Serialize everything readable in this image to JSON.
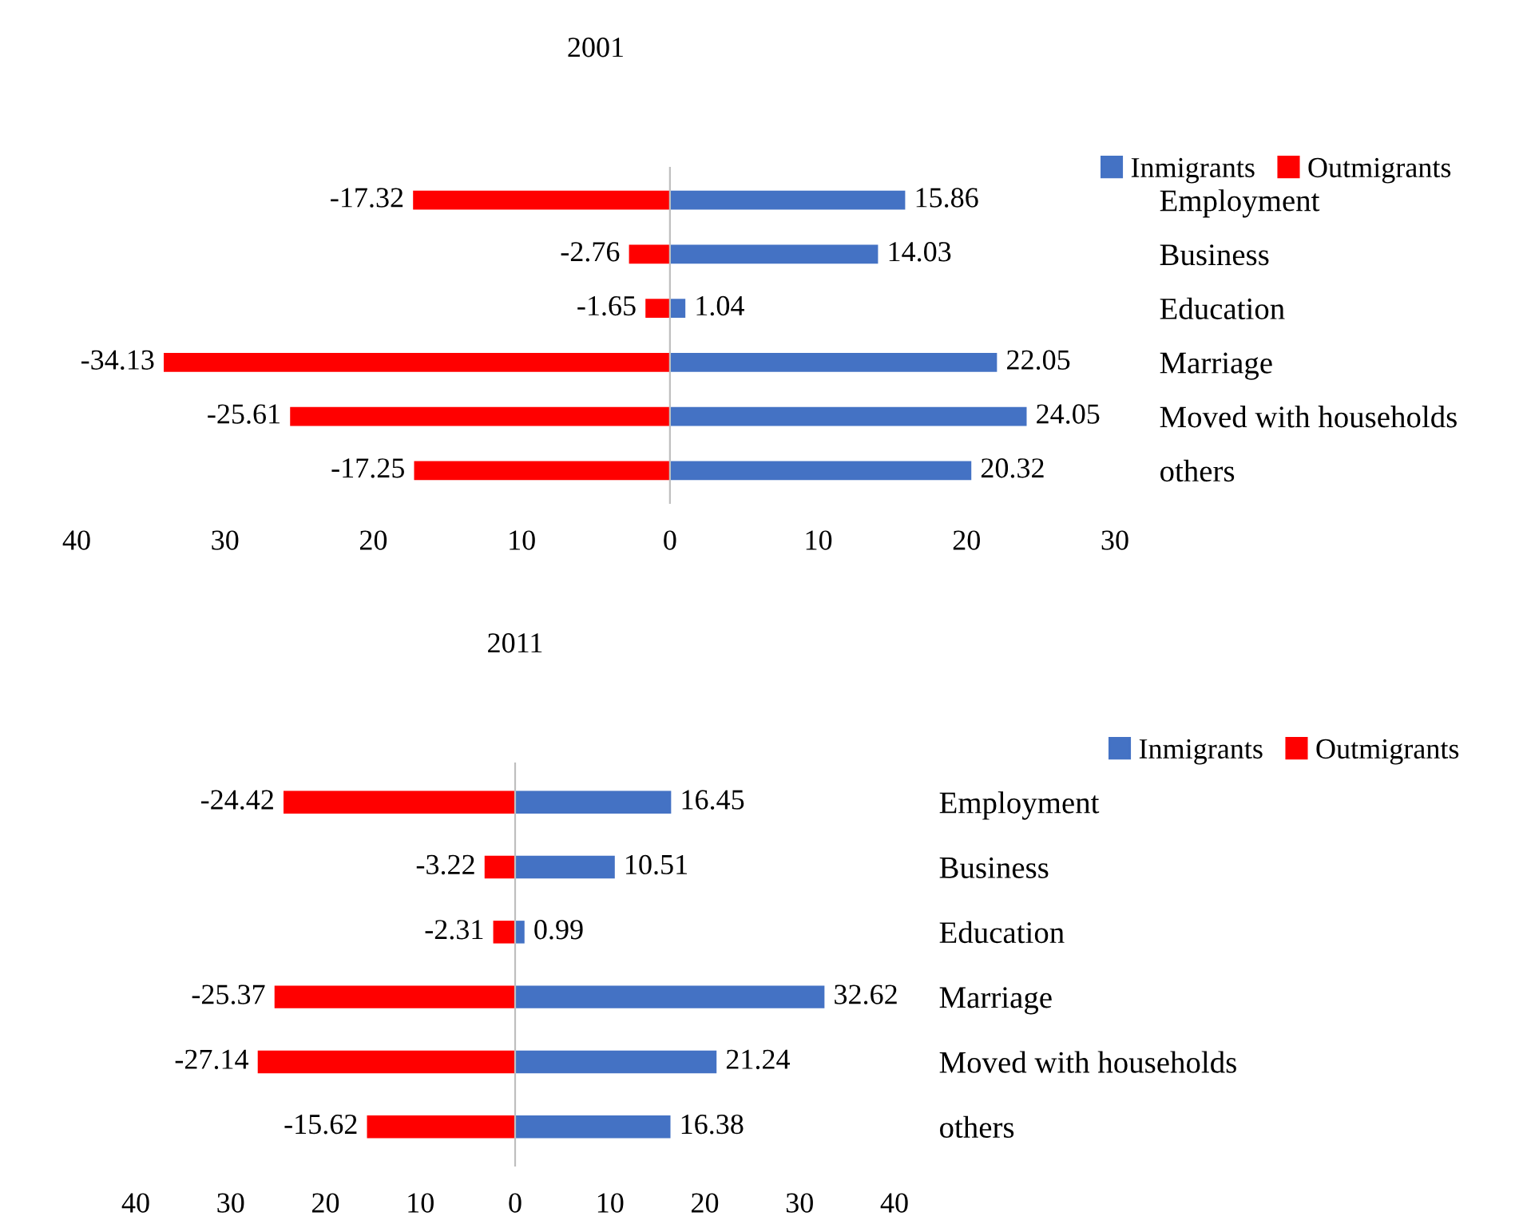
{
  "chart_data": [
    {
      "type": "bar",
      "title": "2001",
      "orientation": "horizontal",
      "stacked": true,
      "data_labels": true,
      "legend": "top right",
      "categories": [
        "Employment",
        "Business",
        "Education",
        "Marriage",
        "Moved with households",
        "others"
      ],
      "series": [
        {
          "name": "Inmigrants",
          "color": "#4472c4",
          "values": [
            15.86,
            14.03,
            1.04,
            22.05,
            24.05,
            20.32
          ]
        },
        {
          "name": "Outmigrants",
          "color": "#ff0000",
          "values": [
            -17.32,
            -2.76,
            -1.65,
            -34.13,
            -25.61,
            -17.25
          ]
        }
      ],
      "xlim": [
        -40,
        30
      ],
      "xticks": [
        {
          "value": -40,
          "label": "40"
        },
        {
          "value": -30,
          "label": "30"
        },
        {
          "value": -20,
          "label": "20"
        },
        {
          "value": -10,
          "label": "10"
        },
        0,
        10,
        20,
        30
      ]
    },
    {
      "type": "bar",
      "title": "2011",
      "orientation": "horizontal",
      "stacked": true,
      "data_labels": true,
      "legend": "top right",
      "categories": [
        "Employment",
        "Business",
        "Education",
        "Marriage",
        "Moved with households",
        "others"
      ],
      "series": [
        {
          "name": "Inmigrants",
          "color": "#4472c4",
          "values": [
            16.45,
            10.51,
            0.99,
            32.62,
            21.24,
            16.38
          ]
        },
        {
          "name": "Outmigrants",
          "color": "#ff0000",
          "values": [
            -24.42,
            -3.22,
            -2.31,
            -25.37,
            -27.14,
            -15.62
          ]
        }
      ],
      "xlim": [
        -40,
        40
      ],
      "xticks": [
        {
          "value": -40,
          "label": "40"
        },
        {
          "value": -30,
          "label": "30"
        },
        {
          "value": -20,
          "label": "20"
        },
        {
          "value": -10,
          "label": "10"
        },
        0,
        10,
        20,
        30,
        40
      ]
    }
  ]
}
